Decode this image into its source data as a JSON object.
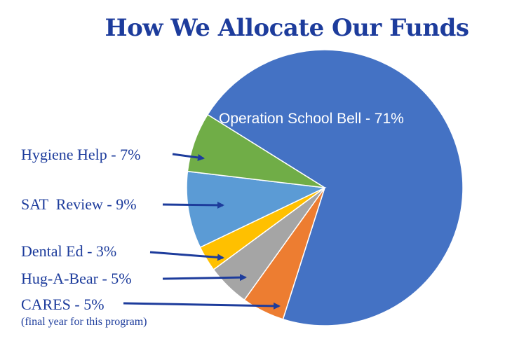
{
  "chart_data": {
    "type": "pie",
    "title": "How We Allocate Our Funds",
    "slices": [
      {
        "label": "Operation School Bell - 71%",
        "value": 71,
        "color": "#4472c4"
      },
      {
        "label": "CARES - 5%",
        "value": 5,
        "color": "#ed7d31"
      },
      {
        "label": "Hug-A-Bear - 5%",
        "value": 5,
        "color": "#a5a5a5"
      },
      {
        "label": "Dental Ed - 3%",
        "value": 3,
        "color": "#ffc000"
      },
      {
        "label": "SAT  Review - 9%",
        "value": 9,
        "color": "#5b9bd5"
      },
      {
        "label": "Hygiene Help - 7%",
        "value": 7,
        "color": "#70ad47"
      }
    ],
    "notes": {
      "cares": "(final year for this program)"
    },
    "arrow_color": "#1d3c9c"
  }
}
